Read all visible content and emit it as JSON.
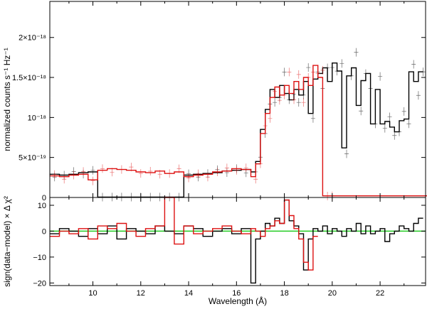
{
  "chart_data": [
    {
      "type": "line",
      "panel": "spectrum",
      "xlabel": "Wavelength (Å)",
      "ylabel": "normalized counts s⁻¹ Hz⁻¹",
      "xlim": [
        8.2,
        23.9
      ],
      "ylim": [
        0,
        2.45e-18
      ],
      "x_ticks": [
        10,
        12,
        14,
        16,
        18,
        20,
        22
      ],
      "y_ticks": [
        {
          "value": 0,
          "label": "0"
        },
        {
          "value": 5e-19,
          "label": "5×10⁻¹⁹"
        },
        {
          "value": 1e-18,
          "label": "10⁻¹⁸"
        },
        {
          "value": 1.5e-18,
          "label": "1.5×10⁻¹⁸"
        },
        {
          "value": 2e-18,
          "label": "2×10⁻¹⁸"
        }
      ],
      "series": [
        {
          "color": "#000000",
          "role": "model",
          "x": [
            8.2,
            8.6,
            9.0,
            9.4,
            9.8,
            10.2,
            10.6,
            11.0,
            11.4,
            11.8,
            12.2,
            12.6,
            13.0,
            13.4,
            13.8,
            14.2,
            14.6,
            15.0,
            15.4,
            15.8,
            16.2,
            16.6,
            16.8,
            17.0,
            17.2,
            17.4,
            17.6,
            17.8,
            18.0,
            18.2,
            18.4,
            18.6,
            18.8,
            19.0,
            19.2,
            19.4,
            19.6,
            19.8,
            20.0,
            20.2,
            20.4,
            20.6,
            20.8,
            21.0,
            21.2,
            21.4,
            21.6,
            21.8,
            22.0,
            22.2,
            22.4,
            22.6,
            22.8,
            23.0,
            23.2,
            23.4,
            23.6
          ],
          "y": [
            2.9e-19,
            2.8e-19,
            2.9e-19,
            3.1e-19,
            3.2e-19,
            5e-21,
            5e-21,
            5e-21,
            5e-21,
            5e-21,
            5e-21,
            5e-21,
            5e-21,
            5e-21,
            2.8e-19,
            2.9e-19,
            3e-19,
            3.1e-19,
            3.3e-19,
            3.4e-19,
            3.5e-19,
            3.2e-19,
            4.5e-19,
            8.5e-19,
            1.1e-18,
            1.35e-18,
            1.25e-18,
            1.4e-18,
            1.3e-18,
            1.22e-18,
            1.35e-18,
            1.28e-18,
            1.45e-18,
            1.05e-18,
            1.48e-18,
            1.55e-18,
            1.62e-18,
            1.45e-18,
            1.68e-18,
            1.58e-18,
            6.2e-19,
            1.52e-18,
            1.62e-18,
            1.15e-18,
            1.46e-18,
            1.55e-18,
            9.2e-19,
            1.35e-18,
            9.2e-19,
            9.5e-19,
            8.8e-19,
            8.2e-19,
            9.6e-19,
            9.8e-19,
            1.57e-18,
            1.45e-18,
            1.57e-18
          ]
        },
        {
          "color": "#dd1111",
          "role": "model",
          "x": [
            8.2,
            8.6,
            9.0,
            9.4,
            9.8,
            10.2,
            10.6,
            11.0,
            11.4,
            11.8,
            12.2,
            12.6,
            13.0,
            13.4,
            13.8,
            14.2,
            14.6,
            15.0,
            15.4,
            15.8,
            16.2,
            16.6,
            16.8,
            17.0,
            17.2,
            17.4,
            17.6,
            17.8,
            18.0,
            18.2,
            18.4,
            18.6,
            18.8,
            19.0,
            19.2,
            19.4,
            19.6,
            19.8,
            23.8
          ],
          "y": [
            2.7e-19,
            2.6e-19,
            2.8e-19,
            2.9e-19,
            2.2e-19,
            3.4e-19,
            3.6e-19,
            3.5e-19,
            3.4e-19,
            3.2e-19,
            3.1e-19,
            3.3e-19,
            3e-19,
            3.2e-19,
            2.6e-19,
            2.8e-19,
            2.9e-19,
            3.2e-19,
            3.3e-19,
            3.6e-19,
            3.5e-19,
            2.6e-19,
            4.2e-19,
            8e-19,
            1.05e-18,
            1.25e-18,
            1.38e-18,
            1.28e-18,
            1.4e-18,
            1.3e-18,
            1.45e-18,
            1.35e-18,
            1.5e-18,
            1.4e-18,
            1.65e-18,
            1.5e-18,
            2e-20,
            2e-20,
            2e-20
          ]
        }
      ]
    },
    {
      "type": "line",
      "panel": "residuals",
      "xlabel": "Wavelength (Å)",
      "ylabel": "sign(data−model) × Δ χ²",
      "xlim": [
        8.2,
        23.9
      ],
      "ylim": [
        -21,
        13
      ],
      "x_ticks": [
        10,
        12,
        14,
        16,
        18,
        20,
        22
      ],
      "y_ticks": [
        {
          "value": 10,
          "label": "10"
        },
        {
          "value": 0,
          "label": "0"
        },
        {
          "value": -10,
          "label": "−10"
        },
        {
          "value": -20,
          "label": "−20"
        }
      ],
      "zero_line_color": "#22cc22",
      "series": [
        {
          "color": "#000000",
          "x": [
            8.2,
            8.6,
            9.0,
            9.4,
            9.8,
            10.2,
            10.6,
            11.0,
            11.4,
            11.8,
            12.2,
            12.6,
            13.0,
            13.4,
            13.8,
            14.2,
            14.6,
            15.0,
            15.4,
            15.8,
            16.2,
            16.6,
            16.8,
            17.0,
            17.2,
            17.4,
            17.6,
            17.8,
            18.0,
            18.2,
            18.4,
            18.6,
            18.8,
            19.0,
            19.2,
            19.4,
            19.6,
            19.8,
            20.0,
            20.2,
            20.4,
            20.6,
            20.8,
            21.0,
            21.2,
            21.4,
            21.6,
            21.8,
            22.0,
            22.2,
            22.4,
            22.6,
            22.8,
            23.0,
            23.2,
            23.4,
            23.6
          ],
          "y": [
            -1,
            1,
            0,
            -2,
            1,
            -1,
            2,
            -3,
            1,
            0,
            -1,
            2,
            0,
            -1,
            2,
            1,
            -2,
            0,
            1,
            -1,
            1,
            -20,
            -3,
            0,
            3,
            2,
            5,
            3,
            12,
            4,
            2,
            -1,
            -15,
            -3,
            1,
            0,
            2,
            -1,
            1,
            0,
            -2,
            1,
            0,
            3,
            -1,
            2,
            -1,
            0,
            1,
            -4,
            -1,
            0,
            2,
            1,
            0,
            3,
            5
          ]
        },
        {
          "color": "#dd1111",
          "x": [
            8.2,
            8.6,
            9.0,
            9.4,
            9.8,
            10.2,
            10.6,
            11.0,
            11.4,
            11.8,
            12.2,
            12.6,
            13.0,
            13.4,
            13.8,
            14.2,
            14.6,
            15.0,
            15.4,
            15.8,
            16.2,
            16.6,
            16.8,
            17.0,
            17.2,
            17.4,
            17.6,
            17.8,
            18.0,
            18.2,
            18.4,
            18.6,
            18.8,
            19.0,
            19.2
          ],
          "y": [
            -2,
            0,
            -1,
            1,
            -3,
            2,
            1,
            3,
            0,
            -2,
            1,
            2,
            13,
            -5,
            2,
            -1,
            0,
            1,
            2,
            0,
            -1,
            1,
            0,
            -2,
            1,
            2,
            4,
            3,
            12,
            6,
            1,
            -3,
            -12,
            -15,
            -2
          ]
        }
      ]
    }
  ]
}
